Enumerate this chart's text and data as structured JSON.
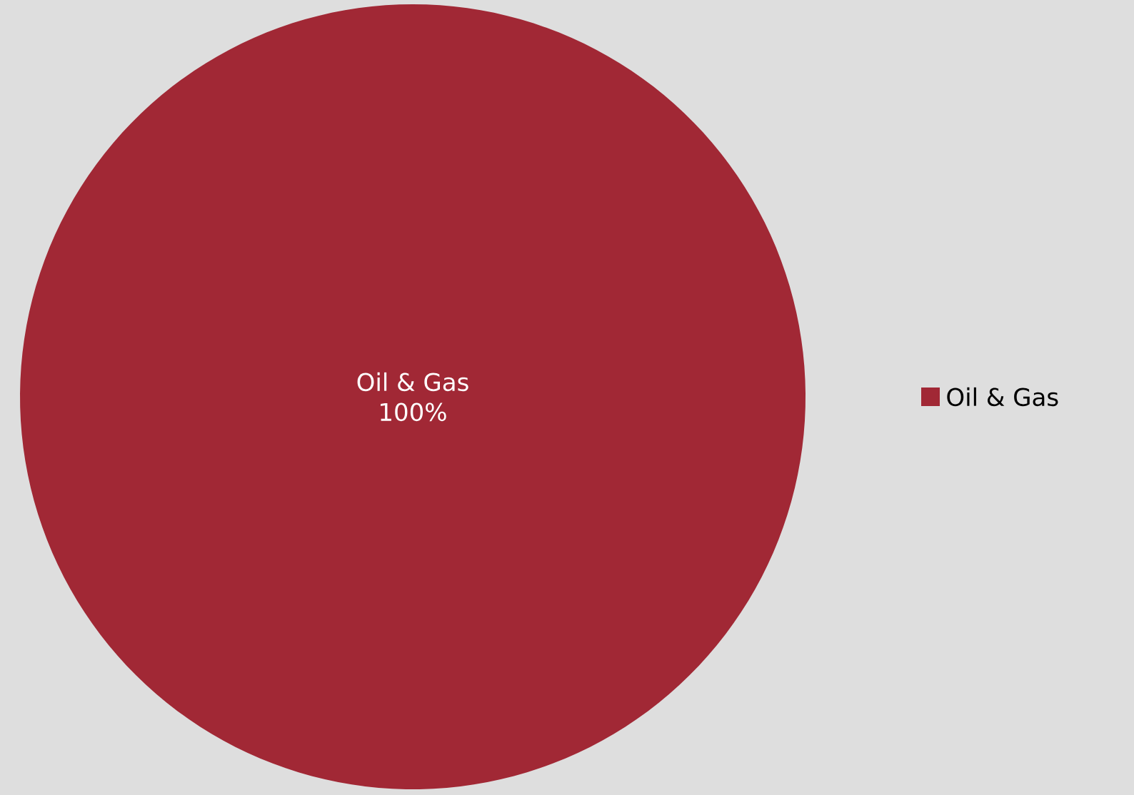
{
  "chart_data": {
    "type": "pie",
    "categories": [
      "Oil & Gas"
    ],
    "values": [
      100
    ],
    "value_labels": [
      "100%"
    ],
    "colors": [
      "#a12835"
    ],
    "legend": "right"
  }
}
